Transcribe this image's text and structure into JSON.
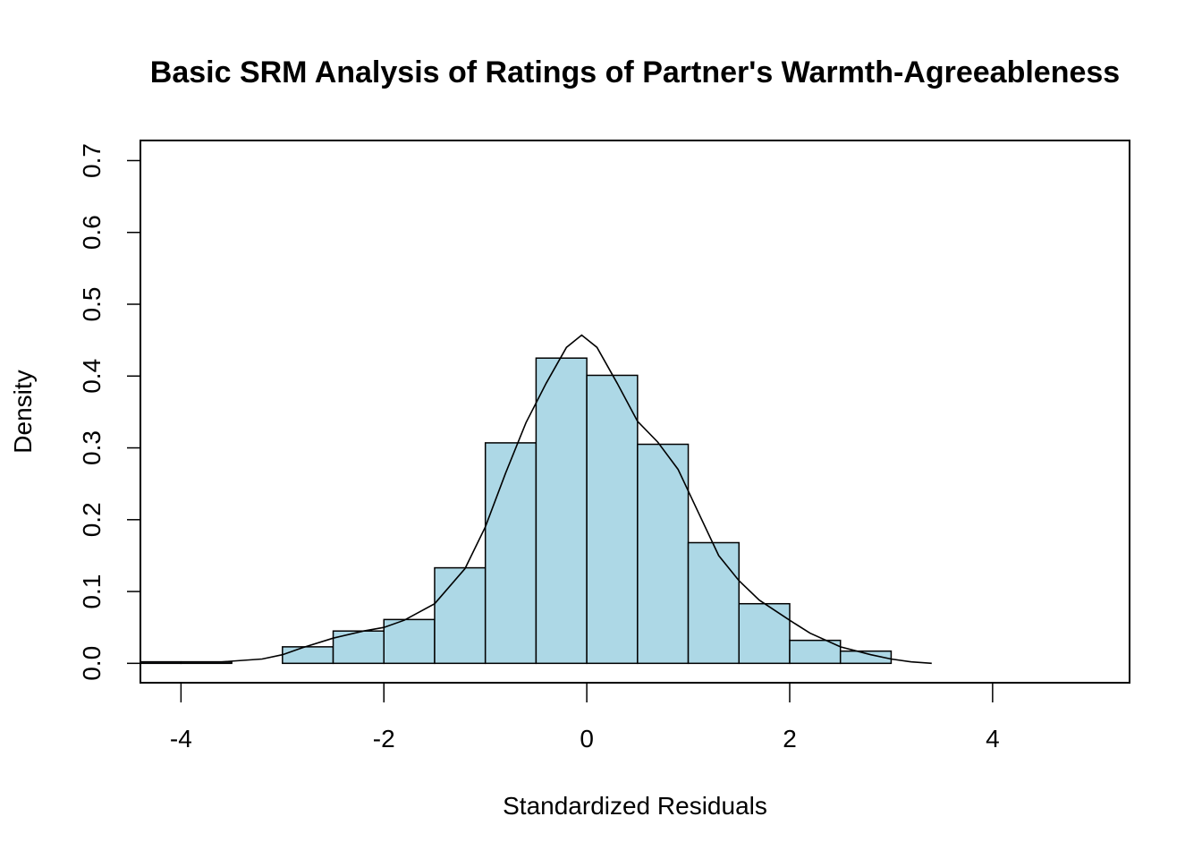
{
  "chart_data": {
    "type": "bar",
    "title": "Basic SRM Analysis of Ratings of Partner's Warmth-Agreeableness",
    "xlabel": "Standardized Residuals",
    "ylabel": "Density",
    "xlim": [
      -4.4,
      5.35
    ],
    "ylim": [
      -0.027,
      0.728
    ],
    "x_ticks": [
      -4,
      -2,
      0,
      2,
      4
    ],
    "y_ticks": [
      0.0,
      0.1,
      0.2,
      0.3,
      0.4,
      0.5,
      0.6,
      0.7
    ],
    "x_tick_labels": [
      "-4",
      "-2",
      "0",
      "2",
      "4"
    ],
    "y_tick_labels": [
      "0.0",
      "0.1",
      "0.2",
      "0.3",
      "0.4",
      "0.5",
      "0.6",
      "0.7"
    ],
    "grid": false,
    "bar_color": "#add8e6",
    "line_color": "#000000",
    "bins": [
      {
        "x0": -4.5,
        "x1": -4.0,
        "density": 0.002
      },
      {
        "x0": -4.0,
        "x1": -3.5,
        "density": 0.002
      },
      {
        "x0": -3.5,
        "x1": -3.0,
        "density": 0.0
      },
      {
        "x0": -3.0,
        "x1": -2.5,
        "density": 0.023
      },
      {
        "x0": -2.5,
        "x1": -2.0,
        "density": 0.045
      },
      {
        "x0": -2.0,
        "x1": -1.5,
        "density": 0.061
      },
      {
        "x0": -1.5,
        "x1": -1.0,
        "density": 0.133
      },
      {
        "x0": -1.0,
        "x1": -0.5,
        "density": 0.307
      },
      {
        "x0": -0.5,
        "x1": 0.0,
        "density": 0.425
      },
      {
        "x0": 0.0,
        "x1": 0.5,
        "density": 0.401
      },
      {
        "x0": 0.5,
        "x1": 1.0,
        "density": 0.305
      },
      {
        "x0": 1.0,
        "x1": 1.5,
        "density": 0.168
      },
      {
        "x0": 1.5,
        "x1": 2.0,
        "density": 0.083
      },
      {
        "x0": 2.0,
        "x1": 2.5,
        "density": 0.032
      },
      {
        "x0": 2.5,
        "x1": 3.0,
        "density": 0.017
      }
    ],
    "density_curve": {
      "x": [
        -4.45,
        -4.0,
        -3.6,
        -3.2,
        -3.0,
        -2.8,
        -2.5,
        -2.2,
        -2.0,
        -1.8,
        -1.5,
        -1.2,
        -1.0,
        -0.8,
        -0.6,
        -0.4,
        -0.2,
        -0.05,
        0.1,
        0.3,
        0.5,
        0.7,
        0.9,
        1.1,
        1.3,
        1.5,
        1.7,
        2.0,
        2.2,
        2.5,
        2.8,
        3.0,
        3.2,
        3.4
      ],
      "y": [
        0.002,
        0.002,
        0.002,
        0.006,
        0.012,
        0.022,
        0.035,
        0.045,
        0.05,
        0.06,
        0.083,
        0.132,
        0.19,
        0.265,
        0.335,
        0.39,
        0.44,
        0.457,
        0.44,
        0.39,
        0.337,
        0.308,
        0.27,
        0.21,
        0.15,
        0.115,
        0.088,
        0.06,
        0.042,
        0.023,
        0.012,
        0.006,
        0.002,
        0.0
      ]
    }
  }
}
